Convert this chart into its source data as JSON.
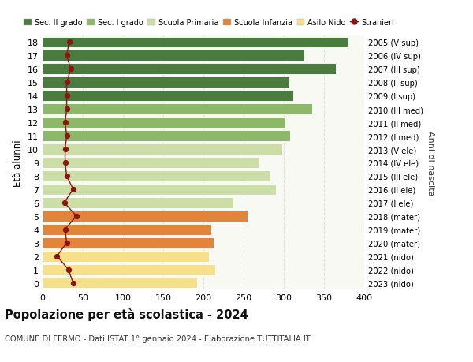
{
  "ages": [
    0,
    1,
    2,
    3,
    4,
    5,
    6,
    7,
    8,
    9,
    10,
    11,
    12,
    13,
    14,
    15,
    16,
    17,
    18
  ],
  "bar_values": [
    192,
    215,
    207,
    213,
    210,
    255,
    237,
    290,
    283,
    270,
    298,
    308,
    302,
    335,
    312,
    307,
    365,
    325,
    380
  ],
  "bar_colors": [
    "#f7e08a",
    "#f7e08a",
    "#f7e08a",
    "#e0853a",
    "#e0853a",
    "#e0853a",
    "#ccdea8",
    "#ccdea8",
    "#ccdea8",
    "#ccdea8",
    "#ccdea8",
    "#8db86a",
    "#8db86a",
    "#8db86a",
    "#4a7c3f",
    "#4a7c3f",
    "#4a7c3f",
    "#4a7c3f",
    "#4a7c3f"
  ],
  "stranieri_values": [
    38,
    32,
    18,
    30,
    28,
    42,
    27,
    38,
    30,
    28,
    28,
    30,
    28,
    30,
    30,
    30,
    35,
    30,
    33
  ],
  "right_labels": [
    "2023 (nido)",
    "2022 (nido)",
    "2021 (nido)",
    "2020 (mater)",
    "2019 (mater)",
    "2018 (mater)",
    "2017 (I ele)",
    "2016 (II ele)",
    "2015 (III ele)",
    "2014 (IV ele)",
    "2013 (V ele)",
    "2012 (I med)",
    "2011 (II med)",
    "2010 (III med)",
    "2009 (I sup)",
    "2008 (II sup)",
    "2007 (III sup)",
    "2006 (IV sup)",
    "2005 (V sup)"
  ],
  "legend_labels": [
    "Sec. II grado",
    "Sec. I grado",
    "Scuola Primaria",
    "Scuola Infanzia",
    "Asilo Nido",
    "Stranieri"
  ],
  "legend_colors": [
    "#4a7c3f",
    "#8db86a",
    "#ccdea8",
    "#e0853a",
    "#f7e08a",
    "#8b1515"
  ],
  "ylabel": "Età alunni",
  "right_ylabel": "Anni di nascita",
  "title": "Popolazione per età scolastica - 2024",
  "subtitle": "COMUNE DI FERMO - Dati ISTAT 1° gennaio 2024 - Elaborazione TUTTITALIA.IT",
  "xlim": [
    0,
    400
  ],
  "xticks": [
    0,
    50,
    100,
    150,
    200,
    250,
    300,
    350,
    400
  ],
  "background_color": "#ffffff",
  "plot_bg_color": "#f9f9f4",
  "grid_color": "#e0e0e0"
}
